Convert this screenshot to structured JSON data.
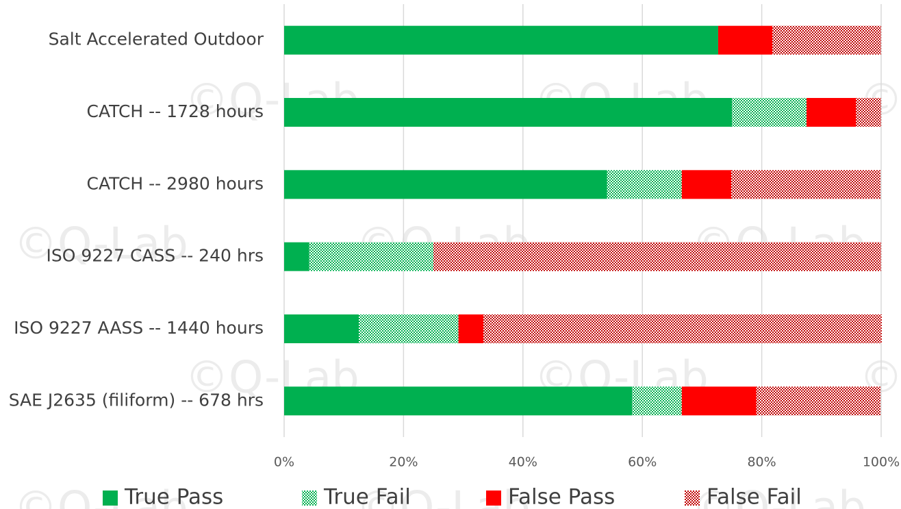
{
  "chart_data": {
    "type": "stacked_barh",
    "watermark": "©Q-Lab",
    "categories": [
      "Salt Accelerated Outdoor",
      "CATCH -- 1728 hours",
      "CATCH -- 2980 hours",
      "ISO 9227 CASS -- 240 hrs",
      "ISO 9227 AASS -- 1440 hours",
      "SAE J2635 (filiform) -- 678 hrs"
    ],
    "series": [
      {
        "name": "True Pass",
        "color": "#00b050",
        "pattern": "solid",
        "values": [
          72.7,
          75.0,
          54.1,
          4.2,
          12.5,
          58.3
        ]
      },
      {
        "name": "True Fail",
        "color": "#00b050",
        "pattern": "hatch",
        "values": [
          0,
          12.5,
          12.5,
          20.8,
          16.7,
          8.3
        ]
      },
      {
        "name": "False Pass",
        "color": "#ff0000",
        "pattern": "solid",
        "values": [
          9.1,
          8.3,
          8.3,
          0,
          4.2,
          12.5
        ]
      },
      {
        "name": "False Fail",
        "color": "#c00000",
        "pattern": "hatch",
        "values": [
          18.2,
          4.2,
          25.0,
          75.0,
          66.7,
          20.8
        ]
      }
    ],
    "xlim": [
      0,
      100
    ],
    "xticks": [
      {
        "value": 0,
        "label": "0%"
      },
      {
        "value": 20,
        "label": "20%"
      },
      {
        "value": 40,
        "label": "40%"
      },
      {
        "value": 60,
        "label": "60%"
      },
      {
        "value": 80,
        "label": "80%"
      },
      {
        "value": 100,
        "label": "100%"
      }
    ],
    "grid": true,
    "legend": "bottom"
  }
}
